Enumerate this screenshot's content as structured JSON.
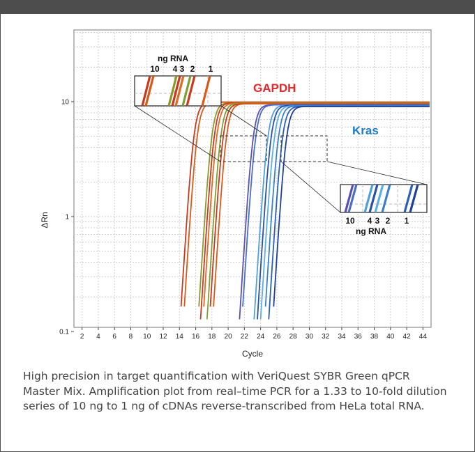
{
  "chart_data": {
    "type": "line",
    "xlabel": "Cycle",
    "ylabel": "ΔRn",
    "xlim": [
      1,
      45
    ],
    "ylim": [
      0.1,
      40
    ],
    "yscale": "log",
    "x_ticks": [
      2,
      4,
      6,
      8,
      10,
      12,
      14,
      16,
      18,
      20,
      22,
      24,
      26,
      28,
      30,
      32,
      34,
      36,
      38,
      40,
      42,
      44
    ],
    "y_ticks": [
      {
        "value": 0.1,
        "label": "0.1"
      },
      {
        "value": 1,
        "label": "1"
      },
      {
        "value": 10,
        "label": "10"
      }
    ],
    "grid": true,
    "series": [
      {
        "group": "GAPDH",
        "color": "#c8391f",
        "ct": 14.0,
        "plateau": 9.9
      },
      {
        "group": "GAPDH",
        "color": "#d85a18",
        "ct": 14.4,
        "plateau": 9.9
      },
      {
        "group": "GAPDH",
        "color": "#8a9a2a",
        "ct": 16.2,
        "plateau": 9.8
      },
      {
        "group": "GAPDH",
        "color": "#c8391f",
        "ct": 16.5,
        "plateau": 9.8
      },
      {
        "group": "GAPDH",
        "color": "#e06a20",
        "ct": 16.8,
        "plateau": 9.7
      },
      {
        "group": "GAPDH",
        "color": "#7ea030",
        "ct": 17.3,
        "plateau": 9.7
      },
      {
        "group": "GAPDH",
        "color": "#c8391f",
        "ct": 17.6,
        "plateau": 9.6
      },
      {
        "group": "GAPDH",
        "color": "#d85a18",
        "ct": 18.0,
        "plateau": 9.6
      },
      {
        "group": "Kras",
        "color": "#5b4fb0",
        "ct": 21.3,
        "plateau": 9.4
      },
      {
        "group": "Kras",
        "color": "#4a6fc8",
        "ct": 21.6,
        "plateau": 9.4
      },
      {
        "group": "Kras",
        "color": "#4fa0d8",
        "ct": 23.1,
        "plateau": 9.3
      },
      {
        "group": "Kras",
        "color": "#2a4fa8",
        "ct": 23.5,
        "plateau": 9.3
      },
      {
        "group": "Kras",
        "color": "#5ab0e0",
        "ct": 23.9,
        "plateau": 9.2
      },
      {
        "group": "Kras",
        "color": "#3a7fc8",
        "ct": 24.4,
        "plateau": 9.2
      },
      {
        "group": "Kras",
        "color": "#2a5fb8",
        "ct": 24.9,
        "plateau": 9.1
      },
      {
        "group": "Kras",
        "color": "#1e3f9a",
        "ct": 25.4,
        "plateau": 9.1
      }
    ],
    "annotations": [
      {
        "text": "GAPDH",
        "color": "#e8262b"
      },
      {
        "text": "Kras",
        "color": "#1f7bc6"
      }
    ],
    "insets": [
      {
        "title": "ng RNA",
        "labels": [
          "10",
          "4",
          "3",
          "2",
          "1"
        ]
      },
      {
        "title": "ng RNA",
        "labels": [
          "10",
          "4",
          "3",
          "2",
          "1"
        ]
      }
    ]
  },
  "caption": "High precision in target quantification with VeriQuest SYBR Green qPCR Master Mix. Amplification plot from real–time PCR for a 1.33 to 10-fold dilution series of 10 ng to 1 ng of cDNAs reverse-transcribed from HeLa total RNA."
}
